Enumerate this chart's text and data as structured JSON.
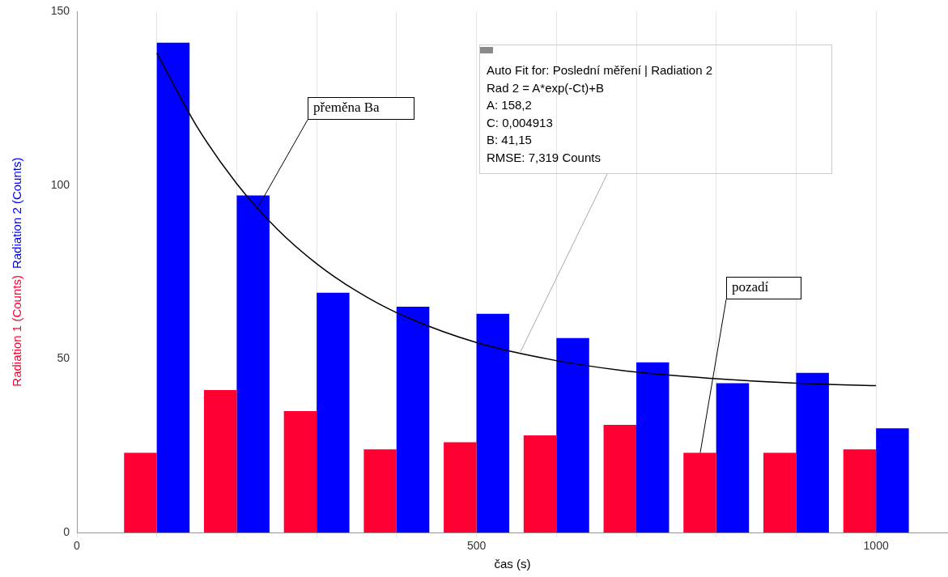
{
  "chart_data": {
    "type": "bar",
    "xlabel": "čas (s)",
    "x": [
      100,
      200,
      300,
      400,
      500,
      600,
      700,
      800,
      900,
      1000
    ],
    "series": [
      {
        "name": "Radiation 1 (Counts)",
        "color": "#ff0033",
        "values": [
          23,
          41,
          35,
          24,
          26,
          28,
          31,
          23,
          23,
          24
        ]
      },
      {
        "name": "Radiation 2 (Counts)",
        "color": "#0000ff",
        "values": [
          141,
          97,
          69,
          65,
          63,
          56,
          49,
          43,
          46,
          30
        ]
      },
      {
        "type": "line",
        "color": "#000000",
        "x": [
          100,
          150,
          200,
          250,
          300,
          350,
          400,
          500,
          600,
          700,
          800,
          900,
          1000
        ],
        "values": [
          138,
          116.9,
          100.4,
          87.5,
          77.4,
          69.5,
          63.3,
          54.7,
          49.5,
          46.2,
          44.3,
          43,
          42.3
        ]
      }
    ],
    "xlim": [
      0,
      1090
    ],
    "xticks": [
      0,
      {
        "value": 100,
        "label": null
      },
      {
        "value": 200,
        "label": null
      },
      {
        "value": 300,
        "label": null
      },
      {
        "value": 400,
        "label": null
      },
      500,
      {
        "value": 600,
        "label": null
      },
      {
        "value": 700,
        "label": null
      },
      {
        "value": 800,
        "label": null
      },
      {
        "value": 900,
        "label": null
      },
      1000
    ],
    "ylim": [
      0,
      150
    ],
    "yticks": [
      0,
      50,
      100,
      150
    ],
    "grid": "x",
    "legend": false,
    "marker": "none",
    "annotations": [
      {
        "text": "Auto Fit for: Poslední měření | Radiation 2\nRad 2 = A*exp(-Ct)+B\nA: 158,2\nC: 0,004913\nB: 41,15\nRMSE: 7,319 Counts",
        "x": 555,
        "y": 52
      },
      {
        "text": "přeměna Ba",
        "x": 225,
        "y": 93
      },
      {
        "text": "pozadí",
        "x": 780,
        "y": 23
      }
    ]
  }
}
